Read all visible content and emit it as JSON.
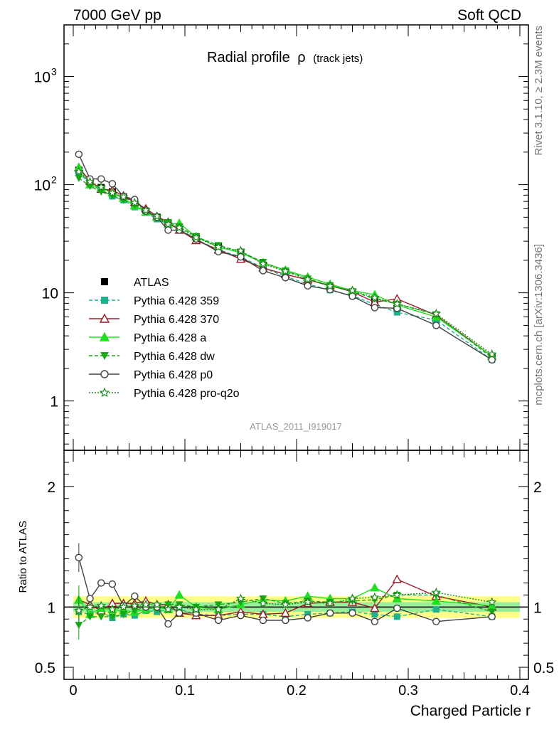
{
  "header": {
    "left": "7000 GeV pp",
    "right": "Soft QCD"
  },
  "side_labels": {
    "rivet": "Rivet 3.1.10, ≥ 2.3M events",
    "mcplots": "mcplots.cern.ch [arXiv:1306.3436]"
  },
  "colors": {
    "ATLAS": "#000000",
    "Pythia 6.428 359": "#1fb08f",
    "Pythia 6.428 370": "#9b1b2a",
    "Pythia 6.428 a": "#22dd22",
    "Pythia 6.428 dw": "#17a817",
    "Pythia 6.428 p0": "#404040",
    "Pythia 6.428 pro-q2o": "#1a8a1a",
    "band_green": "#99ee99",
    "band_yellow": "#ffff88"
  },
  "chart_data": [
    {
      "type": "line",
      "title": "Radial profile ρ (track jets)",
      "title_main": "Radial profile",
      "title_symbol": "ρ",
      "title_sub": "(track jets)",
      "analysis_label": "ATLAS_2011_I919017",
      "yscale": "log",
      "xlim": [
        0.0,
        0.4
      ],
      "ylim": [
        0.35,
        3000
      ],
      "y_ticks": [
        {
          "value": 1,
          "label": "1"
        },
        {
          "value": 10,
          "label": "10"
        },
        {
          "value": 100,
          "label": "10",
          "sup": "2"
        },
        {
          "value": 1000,
          "label": "10",
          "sup": "3"
        }
      ],
      "legend_position": "left-middle",
      "x": [
        0.005,
        0.015,
        0.025,
        0.035,
        0.045,
        0.055,
        0.065,
        0.075,
        0.085,
        0.095,
        0.11,
        0.13,
        0.15,
        0.17,
        0.19,
        0.21,
        0.23,
        0.25,
        0.27,
        0.29,
        0.325,
        0.375
      ],
      "series": [
        {
          "name": "ATLAS",
          "style": "data",
          "marker": "square-filled",
          "line": "none",
          "values": [
            136,
            106,
            94,
            86,
            77,
            67,
            57,
            50,
            44,
            40,
            33,
            27,
            23,
            18,
            15.5,
            12.8,
            11.2,
            9.8,
            8.3,
            7.2,
            5.7,
            2.6
          ]
        },
        {
          "name": "Pythia 6.428 359",
          "style": "mc",
          "marker": "square-filled",
          "line": "dashed",
          "values": [
            131,
            100,
            90,
            78,
            72,
            62,
            55,
            48,
            43,
            39,
            31,
            25,
            21.5,
            17,
            14.2,
            12.0,
            10.6,
            9.4,
            7.8,
            6.6,
            5.6,
            2.4
          ]
        },
        {
          "name": "Pythia 6.428 370",
          "style": "mc",
          "marker": "triangle-open",
          "line": "solid",
          "values": [
            144,
            108,
            91,
            89,
            79,
            69,
            60,
            51,
            45,
            38,
            30.5,
            25,
            20.5,
            17,
            14.8,
            13.2,
            11.7,
            10.2,
            8.2,
            8.8,
            6.2,
            2.6
          ]
        },
        {
          "name": "Pythia 6.428 a",
          "style": "mc",
          "marker": "triangle-filled",
          "line": "solid",
          "values": [
            144,
            100,
            93,
            84,
            75,
            64,
            56,
            50,
            43,
            44,
            33,
            26.5,
            23.5,
            19,
            16.2,
            14,
            12,
            10.5,
            9.6,
            7.7,
            6.0,
            2.6
          ]
        },
        {
          "name": "Pythia 6.428 dw",
          "style": "mc",
          "marker": "triangle-down-filled",
          "line": "dashed",
          "values": [
            115,
            97,
            86,
            79,
            72,
            65,
            57,
            49,
            45,
            41,
            33,
            27.5,
            24,
            19.2,
            16,
            13.5,
            11.7,
            10.3,
            8.8,
            7.9,
            6.3,
            2.5
          ]
        },
        {
          "name": "Pythia 6.428 p0",
          "style": "mc",
          "marker": "circle-open",
          "line": "solid",
          "values": [
            191,
            113,
            113,
            102,
            78,
            73,
            57,
            50,
            38,
            38,
            31.5,
            24,
            21.5,
            16,
            13.8,
            11.6,
            10.7,
            9.3,
            7.3,
            7.2,
            5.0,
            2.4
          ]
        },
        {
          "name": "Pythia 6.428 pro-q2o",
          "style": "mc",
          "marker": "star-open",
          "line": "dotted",
          "values": [
            132,
            106,
            95,
            84,
            77,
            68,
            58,
            51,
            43,
            40,
            32.5,
            26.5,
            24.5,
            18.5,
            15.8,
            13.3,
            11.5,
            10.5,
            9.0,
            7.9,
            6.4,
            2.7
          ]
        }
      ]
    },
    {
      "type": "line",
      "ylabel": "Ratio to ATLAS",
      "xlabel": "Charged Particle r",
      "xlim": [
        0.0,
        0.4
      ],
      "ylim": [
        0.4,
        2.3
      ],
      "y_ticks": [
        {
          "value": 0.5,
          "label": "0.5"
        },
        {
          "value": 1,
          "label": "1"
        },
        {
          "value": 2,
          "label": "2"
        }
      ],
      "x_ticks": [
        {
          "value": 0,
          "label": "0"
        },
        {
          "value": 0.1,
          "label": "0.1"
        },
        {
          "value": 0.2,
          "label": "0.2"
        },
        {
          "value": 0.3,
          "label": "0.3"
        },
        {
          "value": 0.4,
          "label": "0.4"
        }
      ],
      "band_yellow_halfwidth": 0.09,
      "band_green_halfwidth": 0.04,
      "x": [
        0.005,
        0.015,
        0.025,
        0.035,
        0.045,
        0.055,
        0.065,
        0.075,
        0.085,
        0.095,
        0.11,
        0.13,
        0.15,
        0.17,
        0.19,
        0.21,
        0.23,
        0.25,
        0.27,
        0.29,
        0.325,
        0.375
      ],
      "series": [
        {
          "name": "Pythia 6.428 359",
          "marker": "square-filled",
          "line": "dashed",
          "values": [
            0.96,
            0.94,
            0.96,
            0.91,
            0.94,
            0.93,
            0.97,
            0.96,
            0.98,
            0.98,
            0.94,
            0.93,
            0.94,
            0.94,
            0.92,
            0.94,
            0.95,
            0.96,
            0.94,
            0.92,
            0.98,
            0.92
          ]
        },
        {
          "name": "Pythia 6.428 370",
          "marker": "triangle-open",
          "line": "solid",
          "values": [
            1.06,
            1.02,
            0.97,
            1.03,
            1.03,
            1.03,
            1.05,
            1.02,
            1.02,
            0.95,
            0.93,
            0.93,
            0.96,
            0.94,
            0.95,
            1.03,
            1.04,
            1.04,
            0.99,
            1.23,
            1.09,
            1.0
          ]
        },
        {
          "name": "Pythia 6.428 a",
          "marker": "triangle-filled",
          "line": "solid",
          "values": [
            1.06,
            0.94,
            0.99,
            0.98,
            0.97,
            0.96,
            0.98,
            1.0,
            0.98,
            1.1,
            1.0,
            0.98,
            1.02,
            1.06,
            1.05,
            1.09,
            1.07,
            1.07,
            1.16,
            1.07,
            1.05,
            1.01
          ]
        },
        {
          "name": "Pythia 6.428 dw",
          "marker": "triangle-down-filled",
          "line": "dashed",
          "values": [
            0.85,
            0.92,
            0.92,
            0.92,
            0.94,
            0.97,
            1.0,
            0.98,
            1.02,
            1.02,
            1.0,
            1.02,
            1.04,
            1.07,
            1.03,
            1.05,
            1.04,
            1.05,
            1.06,
            1.1,
            1.1,
            0.96
          ]
        },
        {
          "name": "Pythia 6.428 p0",
          "marker": "circle-open",
          "line": "solid",
          "values": [
            1.41,
            1.07,
            1.2,
            1.19,
            1.01,
            1.09,
            1.0,
            1.0,
            0.86,
            0.95,
            0.95,
            0.89,
            0.93,
            0.89,
            0.89,
            0.91,
            0.95,
            0.95,
            0.88,
            0.99,
            0.88,
            0.92
          ]
        },
        {
          "name": "Pythia 6.428 pro-q2o",
          "marker": "star-open",
          "line": "dotted",
          "values": [
            0.97,
            1.0,
            1.01,
            0.98,
            1.0,
            1.01,
            1.02,
            1.02,
            0.98,
            1.0,
            0.98,
            0.98,
            1.07,
            1.03,
            1.02,
            1.04,
            1.03,
            1.07,
            1.08,
            1.1,
            1.12,
            1.04
          ]
        }
      ]
    }
  ]
}
